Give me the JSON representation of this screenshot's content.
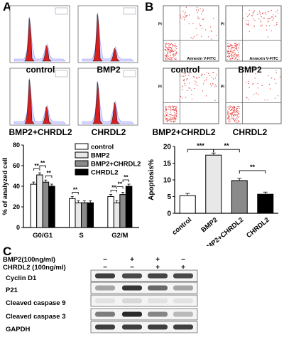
{
  "panels": {
    "a": "A",
    "b": "B",
    "c": "C"
  },
  "cell_cycle_histograms": [
    {
      "label": "control"
    },
    {
      "label": "BMP2"
    },
    {
      "label": "BMP2+CHRDL2"
    },
    {
      "label": "CHRDL2"
    }
  ],
  "apoptosis_plots": [
    {
      "label": "control",
      "xaxis": "Annexin V-FITC",
      "yaxis": "PI"
    },
    {
      "label": "BMP2",
      "xaxis": "Annexin V-FITC",
      "yaxis": "PI"
    },
    {
      "label": "BMP2+CHRDL2",
      "xaxis": "",
      "yaxis": "PI"
    },
    {
      "label": "CHRDL2",
      "xaxis": "",
      "yaxis": "PI"
    }
  ],
  "colors": {
    "histogram_fill": "#d81e1e",
    "scatter_dot": "#e23030",
    "series": [
      "#ffffff",
      "#e8e8e8",
      "#8a8a8a",
      "#000000"
    ]
  },
  "chart_data": [
    {
      "type": "bar",
      "ylabel": "% of analyzed cell",
      "categories": [
        "G0/G1",
        "S",
        "G2/M"
      ],
      "ylim": [
        0,
        80
      ],
      "yticks": [
        0,
        20,
        40,
        60,
        80
      ],
      "legend": "top-right",
      "series": [
        {
          "name": "control",
          "values": [
            42,
            28,
            30
          ]
        },
        {
          "name": "BMP2",
          "values": [
            51,
            24,
            24
          ]
        },
        {
          "name": "BMP2+CHRDL2",
          "values": [
            44,
            24,
            32
          ]
        },
        {
          "name": "CHRDL2",
          "values": [
            40,
            24,
            40
          ]
        }
      ],
      "significance": [
        "**",
        "**",
        "**",
        "**",
        "**",
        "**",
        "**"
      ]
    },
    {
      "type": "bar",
      "ylabel": "Apoptosis%",
      "categories": [
        "control",
        "BMP2",
        "BMP2+CHRDL2",
        "CHRDL2"
      ],
      "values": [
        5.3,
        17.4,
        9.8,
        5.7
      ],
      "ylim": [
        0,
        20
      ],
      "yticks": [
        0,
        5,
        10,
        15,
        20
      ],
      "significance": [
        "***",
        "**",
        "**"
      ]
    }
  ],
  "western_blot": {
    "treatments": [
      {
        "name": "BMP2(100ng/ml)",
        "marks": [
          "−",
          "+",
          "+",
          "−"
        ]
      },
      {
        "name": "CHRDL2 (100ng/ml)",
        "marks": [
          "−",
          "−",
          "+",
          "+"
        ]
      }
    ],
    "proteins": [
      "Cyclin D1",
      "P21",
      "Cleaved caspase 9",
      "Cleaved caspase 3",
      "GAPDH"
    ],
    "band_intensity": [
      [
        0.85,
        0.8,
        0.82,
        0.8
      ],
      [
        0.35,
        0.9,
        0.65,
        0.35
      ],
      [
        0.05,
        0.1,
        0.05,
        0.05
      ],
      [
        0.55,
        0.95,
        0.5,
        0.25
      ],
      [
        0.85,
        0.85,
        0.85,
        0.85
      ]
    ]
  }
}
